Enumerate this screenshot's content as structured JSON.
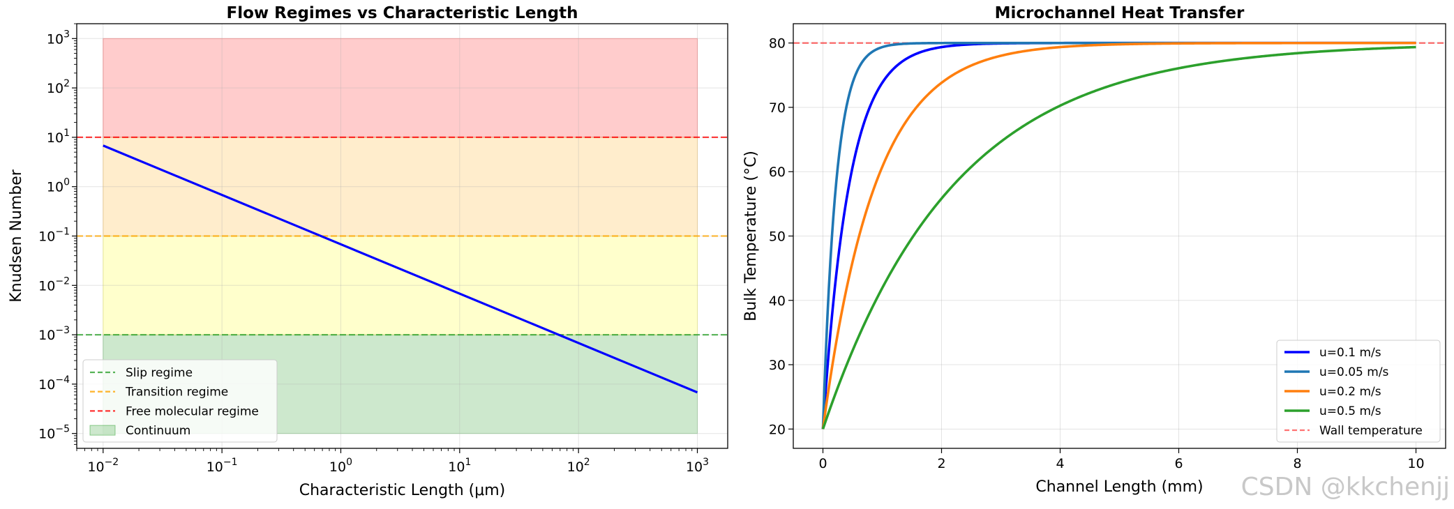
{
  "chart_data": [
    {
      "type": "line",
      "title": "Flow Regimes vs Characteristic Length",
      "xlabel": "Characteristic Length (μm)",
      "ylabel": "Knudsen Number",
      "xscale": "log",
      "yscale": "log",
      "xlim": [
        0.006,
        1800
      ],
      "ylim": [
        5e-06,
        2000
      ],
      "x_ticks": [
        {
          "value": 0.01,
          "base": "10",
          "exp": "−2"
        },
        {
          "value": 0.1,
          "base": "10",
          "exp": "−1"
        },
        {
          "value": 1,
          "base": "10",
          "exp": "0"
        },
        {
          "value": 10,
          "base": "10",
          "exp": "1"
        },
        {
          "value": 100,
          "base": "10",
          "exp": "2"
        },
        {
          "value": 1000,
          "base": "10",
          "exp": "3"
        }
      ],
      "y_ticks": [
        {
          "value": 1e-05,
          "base": "10",
          "exp": "−5"
        },
        {
          "value": 0.0001,
          "base": "10",
          "exp": "−4"
        },
        {
          "value": 0.001,
          "base": "10",
          "exp": "−3"
        },
        {
          "value": 0.01,
          "base": "10",
          "exp": "−2"
        },
        {
          "value": 0.1,
          "base": "10",
          "exp": "−1"
        },
        {
          "value": 1,
          "base": "10",
          "exp": "0"
        },
        {
          "value": 10,
          "base": "10",
          "exp": "1"
        },
        {
          "value": 100,
          "base": "10",
          "exp": "2"
        },
        {
          "value": 1000,
          "base": "10",
          "exp": "3"
        }
      ],
      "grid": true,
      "regions": [
        {
          "name": "Continuum",
          "x": [
            0.01,
            1000
          ],
          "y": [
            1e-05,
            0.001
          ],
          "color": "#2ca02c",
          "alpha": 0.24
        },
        {
          "name": "Slip",
          "x": [
            0.01,
            1000
          ],
          "y": [
            0.001,
            0.1
          ],
          "color": "#ffff00",
          "alpha": 0.2
        },
        {
          "name": "Transition",
          "x": [
            0.01,
            1000
          ],
          "y": [
            0.1,
            10
          ],
          "color": "#ffa500",
          "alpha": 0.2
        },
        {
          "name": "Free molecular",
          "x": [
            0.01,
            1000
          ],
          "y": [
            10,
            1000
          ],
          "color": "#ff0000",
          "alpha": 0.2
        }
      ],
      "hlines": [
        {
          "label": "Slip regime",
          "y": 0.001,
          "color": "#2ca02c"
        },
        {
          "label": "Transition regime",
          "y": 0.1,
          "color": "#ffa500"
        },
        {
          "label": "Free molecular regime",
          "y": 10,
          "color": "#ff0000"
        }
      ],
      "series": [
        {
          "name": "Knudsen number",
          "x": [
            0.01,
            1000
          ],
          "y": [
            6.8,
            6.8e-05
          ],
          "color": "#0000ff"
        }
      ],
      "legend": {
        "placement": "lower-left",
        "entries": [
          {
            "label": "Slip regime",
            "kind": "dash",
            "color": "#2ca02c"
          },
          {
            "label": "Transition regime",
            "kind": "dash",
            "color": "#ffa500"
          },
          {
            "label": "Free molecular regime",
            "kind": "dash",
            "color": "#ff0000"
          },
          {
            "label": "Continuum",
            "kind": "patch",
            "color": "#2ca02c"
          }
        ]
      }
    },
    {
      "type": "line",
      "title": "Microchannel Heat Transfer",
      "xlabel": "Channel Length (mm)",
      "ylabel": "Bulk Temperature (°C)",
      "xlim": [
        -0.5,
        10.5
      ],
      "ylim": [
        17,
        83
      ],
      "x_ticks": [
        0,
        2,
        4,
        6,
        8,
        10
      ],
      "y_ticks": [
        20,
        30,
        40,
        50,
        60,
        70,
        80
      ],
      "grid": true,
      "model": {
        "T_wall": 80,
        "T_inlet": 20
      },
      "hlines": [
        {
          "label": "Wall temperature",
          "y": 80,
          "color": "#ff0000"
        }
      ],
      "series": [
        {
          "name": "u=0.1 m/s",
          "color": "#0000ff",
          "decay_length_mm": 0.44
        },
        {
          "name": "u=0.05 m/s",
          "color": "#1f77b4",
          "decay_length_mm": 0.22
        },
        {
          "name": "u=0.2 m/s",
          "color": "#ff7f0e",
          "decay_length_mm": 0.88
        },
        {
          "name": "u=0.5 m/s",
          "color": "#2ca02c",
          "decay_length_mm": 2.2
        }
      ],
      "legend": {
        "placement": "lower-right",
        "entries": [
          {
            "label": "u=0.1 m/s",
            "kind": "line",
            "color": "#0000ff"
          },
          {
            "label": "u=0.05 m/s",
            "kind": "line",
            "color": "#1f77b4"
          },
          {
            "label": "u=0.2 m/s",
            "kind": "line",
            "color": "#ff7f0e"
          },
          {
            "label": "u=0.5 m/s",
            "kind": "line",
            "color": "#2ca02c"
          },
          {
            "label": "Wall temperature",
            "kind": "dash",
            "color": "#ff0000"
          }
        ]
      }
    }
  ],
  "watermark": "CSDN @kkchenjj"
}
